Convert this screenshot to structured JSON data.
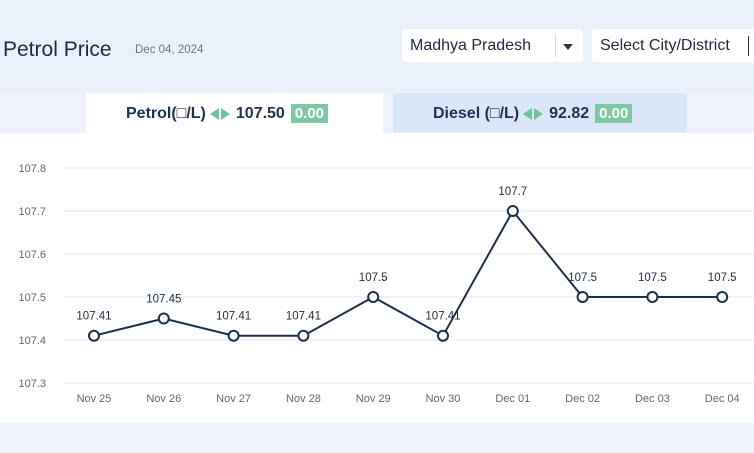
{
  "header": {
    "title": "Petrol Price",
    "date": "Dec 04, 2024",
    "state_select": "Madhya Pradesh",
    "city_select": "Select City/District"
  },
  "tabs": [
    {
      "label": "Petrol(□/L)",
      "price": "107.50",
      "change": "0.00",
      "active": true
    },
    {
      "label": "Diesel (□/L)",
      "price": "92.82",
      "change": "0.00",
      "active": false
    }
  ],
  "colors": {
    "line": "#1b2f55",
    "change_badge": "#7ec8a5",
    "arrows": "#6cc49a",
    "active_tab": "#ffffff",
    "inactive_tab": "#dbe6f8"
  },
  "chart_data": {
    "type": "line",
    "categories": [
      "Nov 25",
      "Nov 26",
      "Nov 27",
      "Nov 28",
      "Nov 29",
      "Nov 30",
      "Dec 01",
      "Dec 02",
      "Dec 03",
      "Dec 04"
    ],
    "values": [
      107.41,
      107.45,
      107.41,
      107.41,
      107.5,
      107.41,
      107.7,
      107.5,
      107.5,
      107.5
    ],
    "data_labels": [
      "107.41",
      "107.45",
      "107.41",
      "107.41",
      "107.5",
      "107.41",
      "107.7",
      "107.5",
      "107.5",
      "107.5"
    ],
    "yticks": [
      "107.3",
      "107.4",
      "107.5",
      "107.6",
      "107.7",
      "107.8"
    ],
    "ylim": [
      107.3,
      107.8
    ],
    "grid": true
  }
}
